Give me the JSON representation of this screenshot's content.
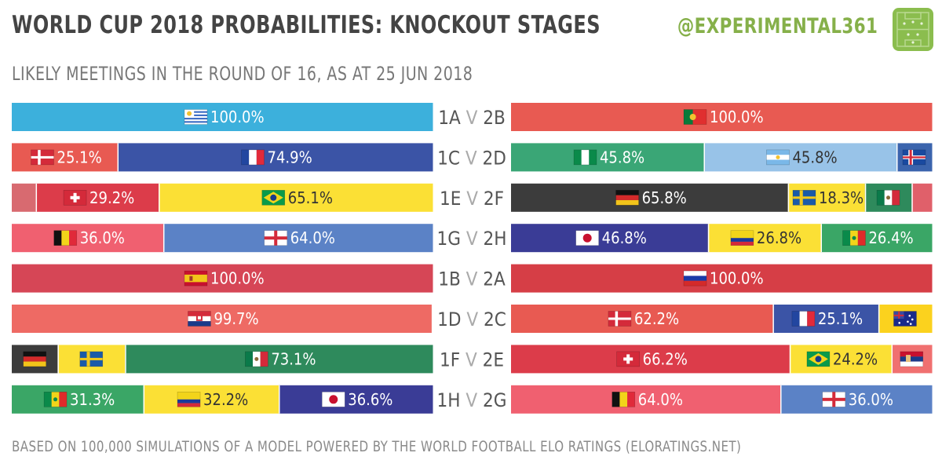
{
  "header": {
    "title": "WORLD CUP 2018 PROBABILITIES: KNOCKOUT STAGES",
    "subtitle": "LIKELY MEETINGS IN THE ROUND OF 16, AS AT 25 JUN 2018",
    "handle": "@EXPERIMENTAL361"
  },
  "footer": {
    "note": "BASED ON 100,000 SIMULATIONS OF A MODEL POWERED BY THE WORLD FOOTBALL ELO RATINGS (ELORATINGS.NET)"
  },
  "chart_data": {
    "type": "bar",
    "stacked": true,
    "percent_scale": [
      0,
      100
    ],
    "matches": [
      {
        "left_label": "1A",
        "sep": "V",
        "right_label": "2B",
        "left": [
          {
            "flag": "uruguay-flag",
            "value": 100.0,
            "label": "100.0%",
            "color": "#3cb0dc"
          }
        ],
        "right": [
          {
            "flag": "portugal-flag",
            "value": 100.0,
            "label": "100.0%",
            "color": "#e85a52"
          }
        ]
      },
      {
        "left_label": "1C",
        "sep": "V",
        "right_label": "2D",
        "left": [
          {
            "flag": "denmark-flag",
            "value": 25.1,
            "label": "25.1%",
            "color": "#e85a52"
          },
          {
            "flag": "france-flag",
            "value": 74.9,
            "label": "74.9%",
            "color": "#3b54a6"
          }
        ],
        "right": [
          {
            "flag": "nigeria-flag",
            "value": 45.8,
            "label": "45.8%",
            "color": "#3aa676"
          },
          {
            "flag": "argentina-flag",
            "value": 45.8,
            "label": "45.8%",
            "color": "#98c3e8"
          },
          {
            "flag": "iceland-flag",
            "value": 8.4,
            "label": "",
            "color": "#3b64ad"
          }
        ]
      },
      {
        "left_label": "1E",
        "sep": "V",
        "right_label": "2F",
        "left": [
          {
            "flag": "",
            "value": 5.7,
            "label": "",
            "color": "#d86a70"
          },
          {
            "flag": "switzerland-flag",
            "value": 29.2,
            "label": "29.2%",
            "color": "#dc3c4a"
          },
          {
            "flag": "brazil-flag",
            "value": 65.1,
            "label": "65.1%",
            "color": "#fbe035"
          }
        ],
        "right": [
          {
            "flag": "germany-flag",
            "value": 65.8,
            "label": "65.8%",
            "color": "#3c3c3c"
          },
          {
            "flag": "sweden-flag",
            "value": 18.3,
            "label": "18.3%",
            "color": "#fbe035"
          },
          {
            "flag": "mexico-flag",
            "value": 11.1,
            "label": "",
            "color": "#2e8a5c"
          },
          {
            "flag": "",
            "value": 4.8,
            "label": "",
            "color": "#e0606a"
          }
        ]
      },
      {
        "left_label": "1G",
        "sep": "V",
        "right_label": "2H",
        "left": [
          {
            "flag": "belgium-flag",
            "value": 36.0,
            "label": "36.0%",
            "color": "#f06070"
          },
          {
            "flag": "england-flag",
            "value": 64.0,
            "label": "64.0%",
            "color": "#5b82c6"
          }
        ],
        "right": [
          {
            "flag": "japan-flag",
            "value": 46.8,
            "label": "46.8%",
            "color": "#3a3c96"
          },
          {
            "flag": "colombia-flag",
            "value": 26.8,
            "label": "26.8%",
            "color": "#fbe035"
          },
          {
            "flag": "senegal-flag",
            "value": 26.4,
            "label": "26.4%",
            "color": "#3aa666"
          }
        ]
      },
      {
        "left_label": "1B",
        "sep": "V",
        "right_label": "2A",
        "left": [
          {
            "flag": "spain-flag",
            "value": 100.0,
            "label": "100.0%",
            "color": "#d64656"
          }
        ],
        "right": [
          {
            "flag": "russia-flag",
            "value": 100.0,
            "label": "100.0%",
            "color": "#d63e46"
          }
        ]
      },
      {
        "left_label": "1D",
        "sep": "V",
        "right_label": "2C",
        "left": [
          {
            "flag": "croatia-flag",
            "value": 99.7,
            "label": "99.7%",
            "color": "#ee6a64"
          }
        ],
        "right": [
          {
            "flag": "denmark-flag",
            "value": 62.2,
            "label": "62.2%",
            "color": "#e85a52"
          },
          {
            "flag": "france-flag",
            "value": 25.1,
            "label": "25.1%",
            "color": "#3b54a6"
          },
          {
            "flag": "australia-flag",
            "value": 12.7,
            "label": "",
            "color": "#fbd21e"
          }
        ]
      },
      {
        "left_label": "1F",
        "sep": "V",
        "right_label": "2E",
        "left": [
          {
            "flag": "germany-flag",
            "value": 10.9,
            "label": "",
            "color": "#3c3c3c"
          },
          {
            "flag": "sweden-flag",
            "value": 16.0,
            "label": "",
            "color": "#fbe035"
          },
          {
            "flag": "mexico-flag",
            "value": 73.1,
            "label": "73.1%",
            "color": "#2e8a5c"
          }
        ],
        "right": [
          {
            "flag": "switzerland-flag",
            "value": 66.2,
            "label": "66.2%",
            "color": "#dc3c4a"
          },
          {
            "flag": "brazil-flag",
            "value": 24.2,
            "label": "24.2%",
            "color": "#fbe035"
          },
          {
            "flag": "serbia-flag",
            "value": 9.6,
            "label": "",
            "color": "#f07070"
          }
        ]
      },
      {
        "left_label": "1H",
        "sep": "V",
        "right_label": "2G",
        "left": [
          {
            "flag": "senegal-flag",
            "value": 31.3,
            "label": "31.3%",
            "color": "#3aa666"
          },
          {
            "flag": "colombia-flag",
            "value": 32.2,
            "label": "32.2%",
            "color": "#fbe035"
          },
          {
            "flag": "japan-flag",
            "value": 36.6,
            "label": "36.6%",
            "color": "#3a3c96"
          }
        ],
        "right": [
          {
            "flag": "belgium-flag",
            "value": 64.0,
            "label": "64.0%",
            "color": "#f06070"
          },
          {
            "flag": "england-flag",
            "value": 36.0,
            "label": "36.0%",
            "color": "#5b82c6"
          }
        ]
      }
    ]
  }
}
